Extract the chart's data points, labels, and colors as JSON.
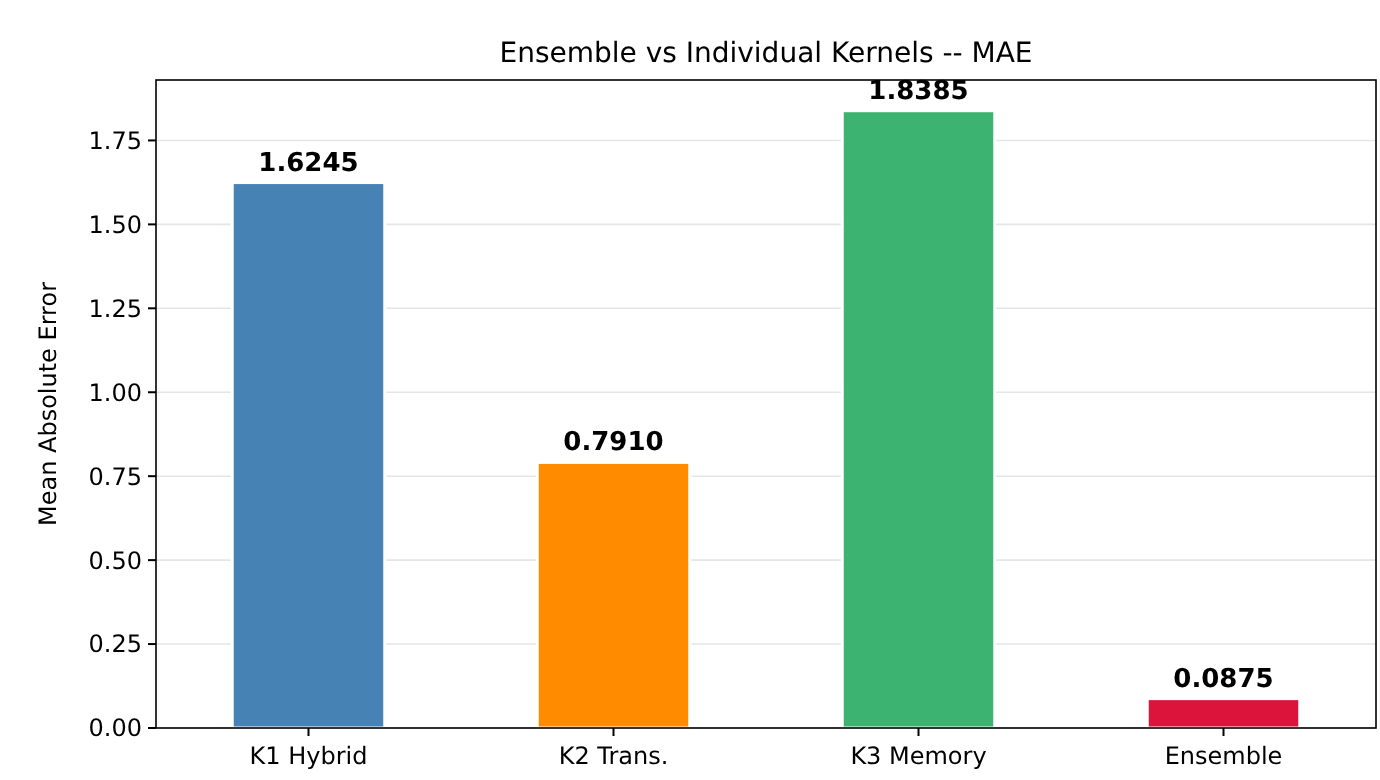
{
  "chart_data": {
    "type": "bar",
    "title": "Ensemble vs Individual Kernels -- MAE",
    "ylabel": "Mean Absolute Error",
    "categories": [
      "K1 Hybrid",
      "K2 Trans.",
      "K3 Memory",
      "Ensemble"
    ],
    "values": [
      1.6245,
      0.791,
      1.8385,
      0.0875
    ],
    "colors": [
      "#4682b4",
      "#ff8c00",
      "#3cb371",
      "#dc143c"
    ],
    "value_labels": [
      "1.6245",
      "0.7910",
      "1.8385",
      "0.0875"
    ],
    "ylim": [
      0,
      1.93
    ],
    "yticks": [
      {
        "value": 0,
        "label": "0.00"
      },
      {
        "value": 0.25,
        "label": "0.25"
      },
      {
        "value": 0.5,
        "label": "0.50"
      },
      {
        "value": 0.75,
        "label": "0.75"
      },
      {
        "value": 1,
        "label": "1.00"
      },
      {
        "value": 1.25,
        "label": "1.25"
      },
      {
        "value": 1.5,
        "label": "1.50"
      },
      {
        "value": 1.75,
        "label": "1.75"
      }
    ],
    "grid": "y"
  }
}
